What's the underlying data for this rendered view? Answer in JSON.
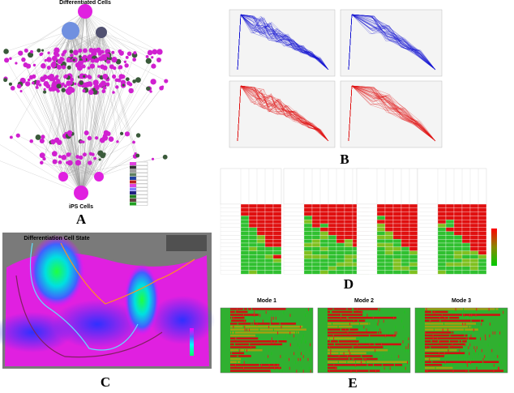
{
  "panels": {
    "a": {
      "label": "A",
      "top": "Differentiated Cells",
      "bottom": "iPS Cells"
    },
    "b": {
      "label": "B"
    },
    "c": {
      "label": "C",
      "title": "Differentiation Cell State"
    },
    "d": {
      "label": "D"
    },
    "e": {
      "label": "E",
      "modes": [
        "Mode 1",
        "Mode 2",
        "Mode 3"
      ]
    }
  }
}
